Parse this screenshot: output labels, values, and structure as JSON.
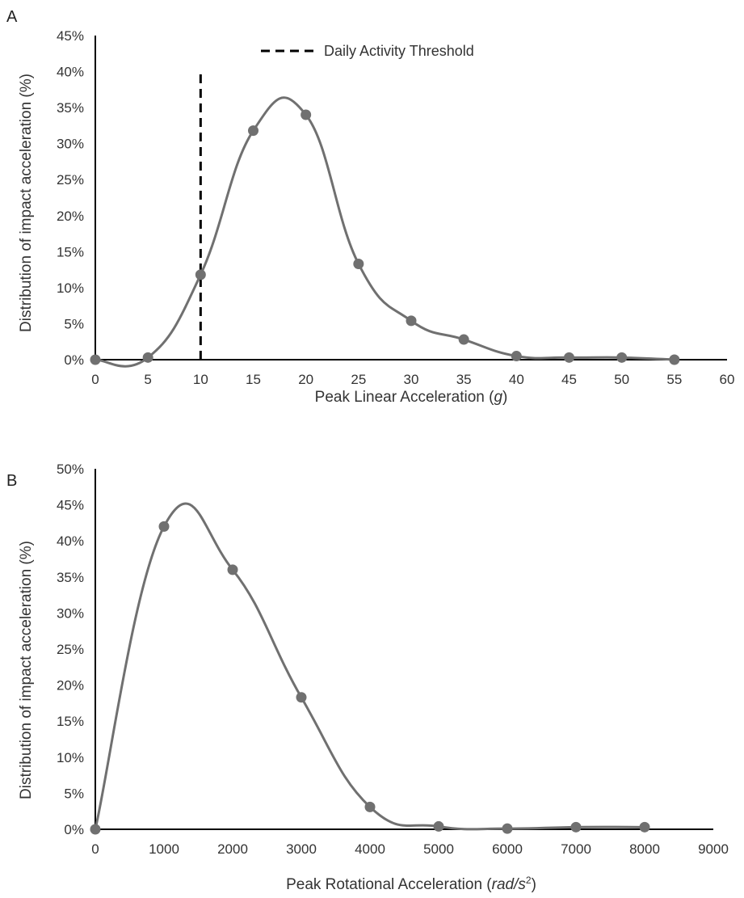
{
  "chart_data": [
    {
      "type": "line",
      "panel_label": "A",
      "xlabel": "Peak Linear Acceleration",
      "xlabel_unit": "g",
      "ylabel": "Distribution of impact acceleration (%)",
      "xlim": [
        0,
        60
      ],
      "ylim": [
        0,
        45
      ],
      "x_ticks": [
        "0",
        "5",
        "10",
        "15",
        "20",
        "25",
        "30",
        "35",
        "40",
        "45",
        "50",
        "55",
        "60"
      ],
      "y_ticks": [
        "0%",
        "5%",
        "10%",
        "15%",
        "20%",
        "25%",
        "30%",
        "35%",
        "40%",
        "45%"
      ],
      "grid": false,
      "series": [
        {
          "x": [
            0,
            5,
            10,
            15,
            20,
            25,
            30,
            35,
            40,
            45,
            50,
            55
          ],
          "values": [
            0,
            0.3,
            11.8,
            31.8,
            34,
            13.3,
            5.4,
            2.8,
            0.5,
            0.3,
            0.3,
            0
          ],
          "color": "#707070"
        }
      ],
      "annotations": [
        {
          "type": "vline",
          "x": 10,
          "y_range": [
            0,
            40
          ],
          "label": "Daily Activity Threshold",
          "style": "dashed",
          "color": "#000000"
        }
      ],
      "legend": "top-center"
    },
    {
      "type": "line",
      "panel_label": "B",
      "xlabel": "Peak Rotational Acceleration",
      "xlabel_unit": "rad/s",
      "xlabel_unit_sup": "2",
      "ylabel": "Distribution of impact acceleration (%)",
      "xlim": [
        0,
        9000
      ],
      "ylim": [
        0,
        50
      ],
      "x_ticks": [
        "0",
        "1000",
        "2000",
        "3000",
        "4000",
        "5000",
        "6000",
        "7000",
        "8000",
        "9000"
      ],
      "y_ticks": [
        "0%",
        "5%",
        "10%",
        "15%",
        "20%",
        "25%",
        "30%",
        "35%",
        "40%",
        "45%",
        "50%"
      ],
      "grid": false,
      "series": [
        {
          "x": [
            0,
            1000,
            2000,
            3000,
            4000,
            5000,
            6000,
            7000,
            8000
          ],
          "values": [
            0,
            42,
            36,
            18.3,
            3.1,
            0.4,
            0.1,
            0.3,
            0.3
          ],
          "color": "#707070"
        }
      ]
    }
  ]
}
